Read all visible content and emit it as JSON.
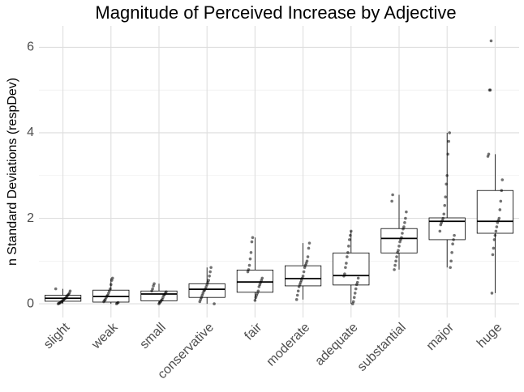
{
  "chart_data": {
    "type": "box",
    "title": "Magnitude of Perceived Increase by Adjective",
    "y_label": "n Standard Deviations (respDev)",
    "categories": [
      "slight",
      "weak",
      "small",
      "conservative",
      "fair",
      "moderate",
      "adequate",
      "substantial",
      "major",
      "huge"
    ],
    "boxes": [
      {
        "min": 0,
        "q1": 0.06,
        "median": 0.13,
        "q3": 0.2,
        "max": 0.35
      },
      {
        "min": 0,
        "q1": 0.04,
        "median": 0.17,
        "q3": 0.32,
        "max": 0.6
      },
      {
        "min": 0,
        "q1": 0.07,
        "median": 0.23,
        "q3": 0.3,
        "max": 0.47
      },
      {
        "min": 0,
        "q1": 0.15,
        "median": 0.34,
        "q3": 0.47,
        "max": 0.85
      },
      {
        "min": 0.08,
        "q1": 0.27,
        "median": 0.51,
        "q3": 0.79,
        "max": 1.55
      },
      {
        "min": 0.1,
        "q1": 0.42,
        "median": 0.59,
        "q3": 0.89,
        "max": 1.42
      },
      {
        "min": 0,
        "q1": 0.44,
        "median": 0.66,
        "q3": 1.19,
        "max": 1.7
      },
      {
        "min": 0.8,
        "q1": 1.19,
        "median": 1.53,
        "q3": 1.76,
        "max": 2.55
      },
      {
        "min": 0.85,
        "q1": 1.5,
        "median": 1.93,
        "q3": 2.01,
        "max": 4.0
      },
      {
        "min": 0.25,
        "q1": 1.65,
        "median": 1.93,
        "q3": 2.65,
        "max": 3.5
      }
    ],
    "points": [
      [
        0.35,
        0.3,
        0.25,
        0.22,
        0.2,
        0.18,
        0.15,
        0.13,
        0.12,
        0.1,
        0.08,
        0.06,
        0.05,
        0.03,
        0.02,
        0.01,
        0
      ],
      [
        0.6,
        0.55,
        0.45,
        0.35,
        0.3,
        0.25,
        0.2,
        0.18,
        0.15,
        0.1,
        0.08,
        0.05,
        0.03,
        0.02,
        0
      ],
      [
        0.47,
        0.42,
        0.35,
        0.3,
        0.28,
        0.25,
        0.22,
        0.2,
        0.15,
        0.1,
        0.08,
        0.05,
        0.03,
        0
      ],
      [
        0.85,
        0.75,
        0.65,
        0.55,
        0.5,
        0.45,
        0.4,
        0.35,
        0.32,
        0.3,
        0.25,
        0.2,
        0.15,
        0.1,
        0.05,
        0
      ],
      [
        1.55,
        1.45,
        1.2,
        1.05,
        0.9,
        0.8,
        0.75,
        0.6,
        0.55,
        0.5,
        0.45,
        0.4,
        0.3,
        0.25,
        0.2,
        0.15,
        0.08
      ],
      [
        1.42,
        1.3,
        1.1,
        1.0,
        0.95,
        0.9,
        0.85,
        0.75,
        0.65,
        0.6,
        0.55,
        0.5,
        0.45,
        0.4,
        0.3,
        0.2,
        0.1
      ],
      [
        1.7,
        1.6,
        1.5,
        1.35,
        1.2,
        1.1,
        0.95,
        0.85,
        0.7,
        0.65,
        0.6,
        0.5,
        0.45,
        0.35,
        0.25,
        0.15,
        0.05,
        0
      ],
      [
        2.55,
        2.4,
        2.15,
        2.0,
        1.9,
        1.8,
        1.75,
        1.65,
        1.55,
        1.5,
        1.45,
        1.35,
        1.25,
        1.2,
        1.1,
        1.0,
        0.9,
        0.8
      ],
      [
        4.0,
        3.8,
        3.5,
        3.0,
        2.8,
        2.5,
        2.3,
        2.1,
        2.0,
        1.95,
        1.9,
        1.85,
        1.7,
        1.6,
        1.5,
        1.4,
        1.2,
        1.0,
        0.85
      ],
      [
        6.15,
        5.0,
        5.0,
        3.5,
        3.45,
        2.9,
        2.65,
        2.4,
        2.2,
        2.0,
        1.95,
        1.9,
        1.8,
        1.7,
        1.6,
        1.5,
        1.3,
        1.15,
        0.25
      ]
    ],
    "point_color": "#000000",
    "box_color": "#000000",
    "ylim": [
      -0.32,
      6.5
    ],
    "yticks": [
      0,
      2,
      4,
      6
    ],
    "y_minor_ticks": [
      1,
      3,
      5
    ],
    "grid": true
  }
}
